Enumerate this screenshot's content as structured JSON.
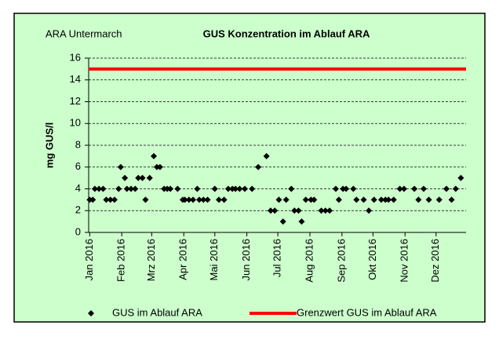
{
  "chart_data": {
    "type": "scatter",
    "subtitle": "ARA Untermarch",
    "title": "GUS Konzentration im Ablauf ARA",
    "y_label": "mg GUS/l",
    "xlim": [
      -1,
      364
    ],
    "xticks": [
      {
        "value": 0,
        "label": "Jan 2016"
      },
      {
        "value": 31,
        "label": "Feb 2016"
      },
      {
        "value": 60,
        "label": "Mrz 2016"
      },
      {
        "value": 91,
        "label": "Apr 2016"
      },
      {
        "value": 121,
        "label": "Mai 2016"
      },
      {
        "value": 152,
        "label": "Jun 2016"
      },
      {
        "value": 182,
        "label": "Jul 2016"
      },
      {
        "value": 213,
        "label": "Aug 2016"
      },
      {
        "value": 244,
        "label": "Sep 2016"
      },
      {
        "value": 274,
        "label": "Okt 2016"
      },
      {
        "value": 305,
        "label": "Nov 2016"
      },
      {
        "value": 335,
        "label": "Dez 2016"
      }
    ],
    "ylim": [
      0,
      16
    ],
    "yticks": [
      0,
      2,
      4,
      6,
      8,
      10,
      12,
      14,
      16
    ],
    "grid": true,
    "series": [
      {
        "name": "GUS im Ablauf ARA",
        "color": "#000000",
        "x": [
          0,
          3,
          5,
          9,
          13,
          16,
          20,
          24,
          28,
          30,
          34,
          36,
          40,
          44,
          47,
          51,
          54,
          58,
          62,
          65,
          68,
          72,
          75,
          78,
          85,
          90,
          92,
          96,
          100,
          104,
          106,
          110,
          114,
          121,
          125,
          130,
          134,
          138,
          141,
          145,
          150,
          157,
          163,
          171,
          175,
          179,
          183,
          187,
          190,
          195,
          198,
          202,
          205,
          209,
          214,
          217,
          224,
          228,
          232,
          238,
          241,
          245,
          248,
          255,
          258,
          265,
          270,
          275,
          282,
          286,
          289,
          294,
          300,
          304,
          314,
          318,
          323,
          328,
          338,
          345,
          350,
          354,
          359
        ],
        "values": [
          3,
          3,
          4,
          4,
          4,
          3,
          3,
          3,
          4,
          6,
          5,
          4,
          4,
          4,
          5,
          5,
          3,
          5,
          7,
          6,
          6,
          4,
          4,
          4,
          4,
          3,
          3,
          3,
          3,
          4,
          3,
          3,
          3,
          4,
          3,
          3,
          4,
          4,
          4,
          4,
          4,
          4,
          6,
          7,
          2,
          2,
          3,
          1,
          3,
          4,
          2,
          2,
          1,
          3,
          3,
          3,
          2,
          2,
          2,
          4,
          3,
          4,
          4,
          4,
          3,
          3,
          2,
          3,
          3,
          3,
          3,
          3,
          4,
          4,
          4,
          3,
          4,
          3,
          3,
          4,
          3,
          4,
          5
        ]
      }
    ],
    "reference_line": {
      "name": "Grenzwert GUS im Ablauf ARA",
      "value": 15,
      "color": "#ff0000"
    }
  }
}
